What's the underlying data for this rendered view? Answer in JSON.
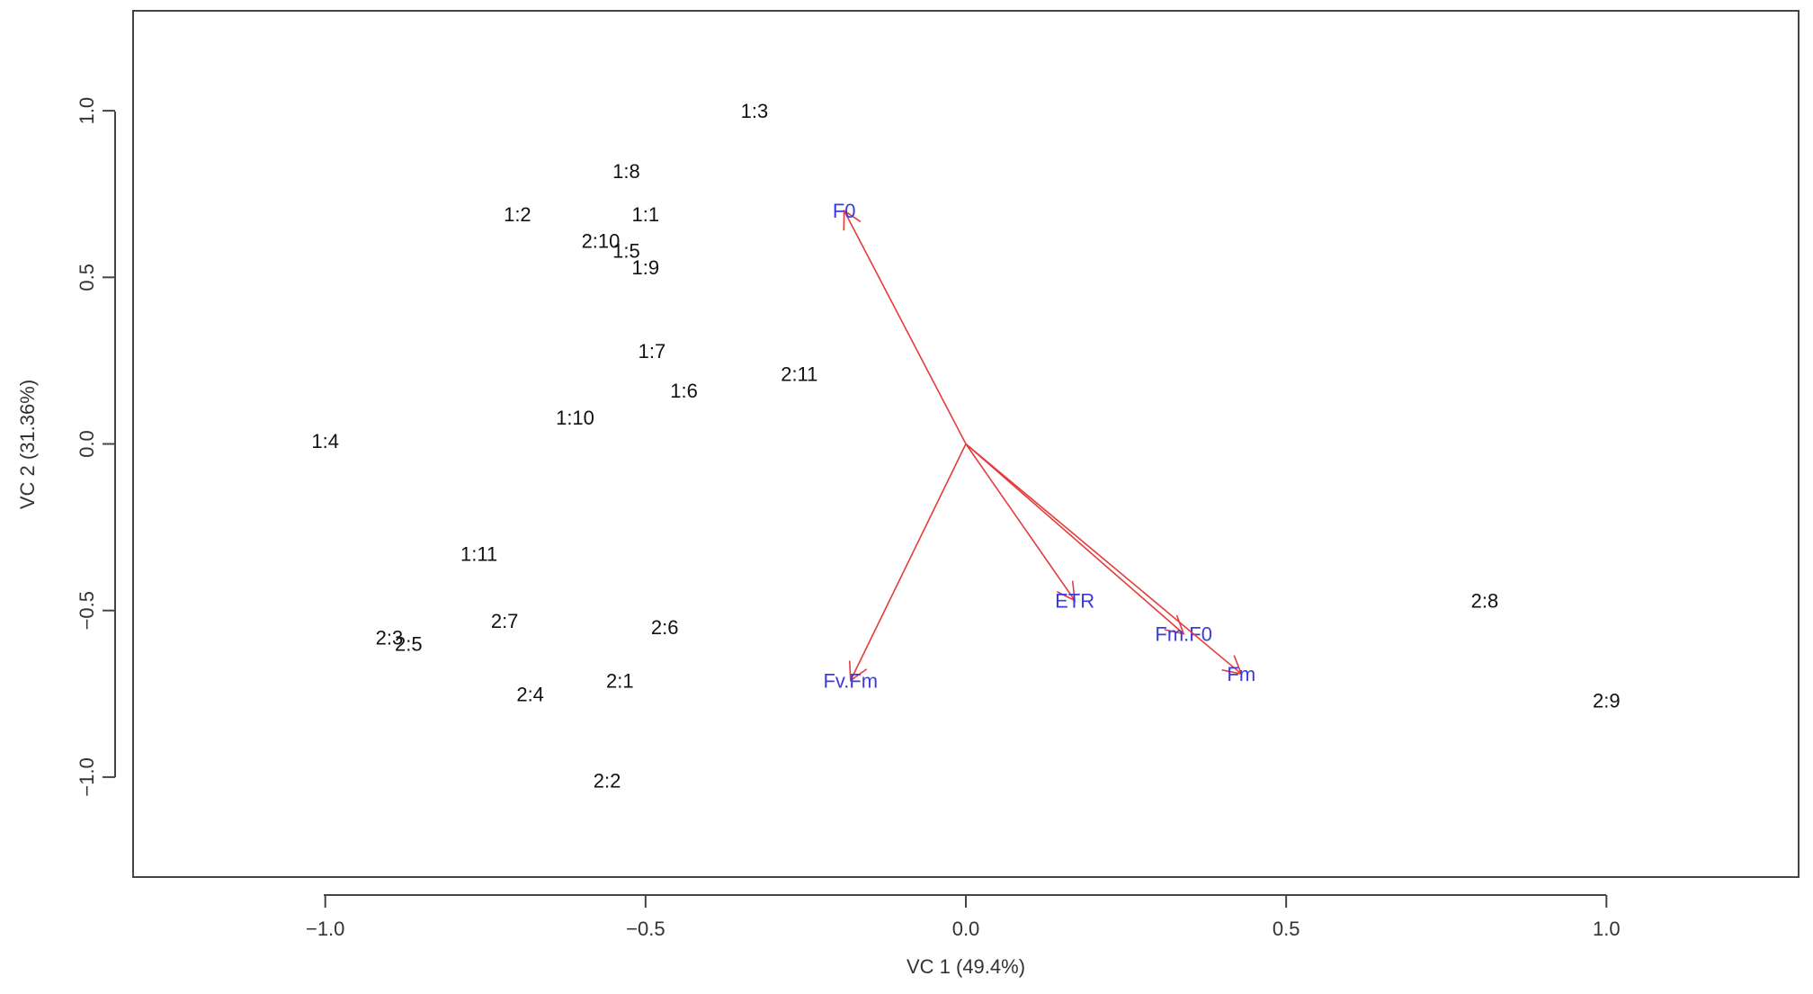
{
  "chart_data": {
    "type": "scatter",
    "xlabel": "VC 1 (49.4%)",
    "ylabel": "VC 2 (31.36%)",
    "xlim": [
      -1.3,
      1.3
    ],
    "ylim": [
      -1.3,
      1.3
    ],
    "x_ticks": [
      -1.0,
      -0.5,
      0.0,
      0.5,
      1.0
    ],
    "x_tick_labels": [
      "−1.0",
      "−0.5",
      "0.0",
      "0.5",
      "1.0"
    ],
    "y_ticks": [
      -1.0,
      -0.5,
      0.0,
      0.5,
      1.0
    ],
    "y_tick_labels": [
      "−1.0",
      "−0.5",
      "0.0",
      "0.5",
      "1.0"
    ],
    "grid": false,
    "point_color": "#111111",
    "vector_color": "#e53b3b",
    "vector_label_color": "#3b3bdc",
    "points": [
      {
        "label": "1:3",
        "x": -0.33,
        "y": 1.0
      },
      {
        "label": "1:8",
        "x": -0.53,
        "y": 0.82
      },
      {
        "label": "1:2",
        "x": -0.7,
        "y": 0.69
      },
      {
        "label": "1:1",
        "x": -0.5,
        "y": 0.69
      },
      {
        "label": "2:10",
        "x": -0.57,
        "y": 0.61
      },
      {
        "label": "1:5",
        "x": -0.53,
        "y": 0.58
      },
      {
        "label": "1:9",
        "x": -0.5,
        "y": 0.53
      },
      {
        "label": "1:7",
        "x": -0.49,
        "y": 0.28
      },
      {
        "label": "2:11",
        "x": -0.26,
        "y": 0.21
      },
      {
        "label": "1:6",
        "x": -0.44,
        "y": 0.16
      },
      {
        "label": "1:10",
        "x": -0.61,
        "y": 0.08
      },
      {
        "label": "1:4",
        "x": -1.0,
        "y": 0.01
      },
      {
        "label": "1:11",
        "x": -0.76,
        "y": -0.33
      },
      {
        "label": "2:7",
        "x": -0.72,
        "y": -0.53
      },
      {
        "label": "2:6",
        "x": -0.47,
        "y": -0.55
      },
      {
        "label": "2:3",
        "x": -0.9,
        "y": -0.58
      },
      {
        "label": "2:5",
        "x": -0.87,
        "y": -0.6
      },
      {
        "label": "2:1",
        "x": -0.54,
        "y": -0.71
      },
      {
        "label": "2:4",
        "x": -0.68,
        "y": -0.75
      },
      {
        "label": "2:2",
        "x": -0.56,
        "y": -1.01
      },
      {
        "label": "2:8",
        "x": 0.81,
        "y": -0.47
      },
      {
        "label": "2:9",
        "x": 1.0,
        "y": -0.77
      }
    ],
    "vectors": [
      {
        "label": "F0",
        "x": -0.19,
        "y": 0.7
      },
      {
        "label": "ETR",
        "x": 0.17,
        "y": -0.47
      },
      {
        "label": "Fm.F0",
        "x": 0.34,
        "y": -0.57
      },
      {
        "label": "Fm",
        "x": 0.43,
        "y": -0.69
      },
      {
        "label": "Fv.Fm",
        "x": -0.18,
        "y": -0.71
      }
    ]
  }
}
